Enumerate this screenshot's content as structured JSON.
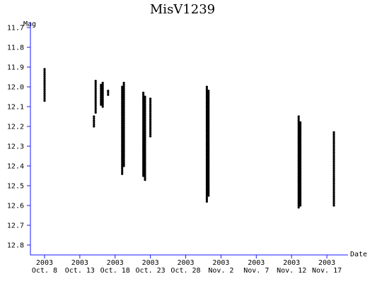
{
  "chart_data": {
    "type": "scatter",
    "title": "MisV1239",
    "ylabel": "Mag",
    "xlabel": "Date",
    "y_inverted": true,
    "ylim": [
      11.7,
      12.85
    ],
    "xlim": [
      "2003-10-06",
      "2003-11-20"
    ],
    "y_ticks": [
      "11.7",
      "11.8",
      "11.9",
      "12.0",
      "12.1",
      "12.2",
      "12.3",
      "12.4",
      "12.5",
      "12.6",
      "12.7",
      "12.8"
    ],
    "x_ticks": [
      {
        "date": "2003-10-08",
        "year": "2003",
        "label": "Oct. 8"
      },
      {
        "date": "2003-10-13",
        "year": "2003",
        "label": "Oct. 13"
      },
      {
        "date": "2003-10-18",
        "year": "2003",
        "label": "Oct. 18"
      },
      {
        "date": "2003-10-23",
        "year": "2003",
        "label": "Oct. 23"
      },
      {
        "date": "2003-10-28",
        "year": "2003",
        "label": "Oct. 28"
      },
      {
        "date": "2003-11-02",
        "year": "2003",
        "label": "Nov. 2"
      },
      {
        "date": "2003-11-07",
        "year": "2003",
        "label": "Nov. 7"
      },
      {
        "date": "2003-11-12",
        "year": "2003",
        "label": "Nov. 12"
      },
      {
        "date": "2003-11-17",
        "year": "2003",
        "label": "Nov. 17"
      }
    ],
    "observation_runs": [
      {
        "date": "2003-10-08",
        "mag_min": 11.91,
        "mag_max": 12.07
      },
      {
        "date": "2003-10-15",
        "mag_min": 12.15,
        "mag_max": 12.2
      },
      {
        "date": "2003-10-15",
        "mag_min": 11.97,
        "mag_max": 12.13
      },
      {
        "date": "2003-10-16",
        "mag_min": 11.99,
        "mag_max": 12.09
      },
      {
        "date": "2003-10-16",
        "mag_min": 11.98,
        "mag_max": 12.1
      },
      {
        "date": "2003-10-17",
        "mag_min": 12.02,
        "mag_max": 12.04
      },
      {
        "date": "2003-10-19",
        "mag_min": 12.0,
        "mag_max": 12.44
      },
      {
        "date": "2003-10-19",
        "mag_min": 11.98,
        "mag_max": 12.4
      },
      {
        "date": "2003-10-22",
        "mag_min": 12.03,
        "mag_max": 12.45
      },
      {
        "date": "2003-10-22",
        "mag_min": 12.05,
        "mag_max": 12.47
      },
      {
        "date": "2003-10-23",
        "mag_min": 12.06,
        "mag_max": 12.25
      },
      {
        "date": "2003-10-31",
        "mag_min": 12.0,
        "mag_max": 12.58
      },
      {
        "date": "2003-10-31",
        "mag_min": 12.02,
        "mag_max": 12.55
      },
      {
        "date": "2003-11-13",
        "mag_min": 12.15,
        "mag_max": 12.61
      },
      {
        "date": "2003-11-13",
        "mag_min": 12.18,
        "mag_max": 12.6
      },
      {
        "date": "2003-11-18",
        "mag_min": 12.23,
        "mag_max": 12.6
      }
    ]
  }
}
